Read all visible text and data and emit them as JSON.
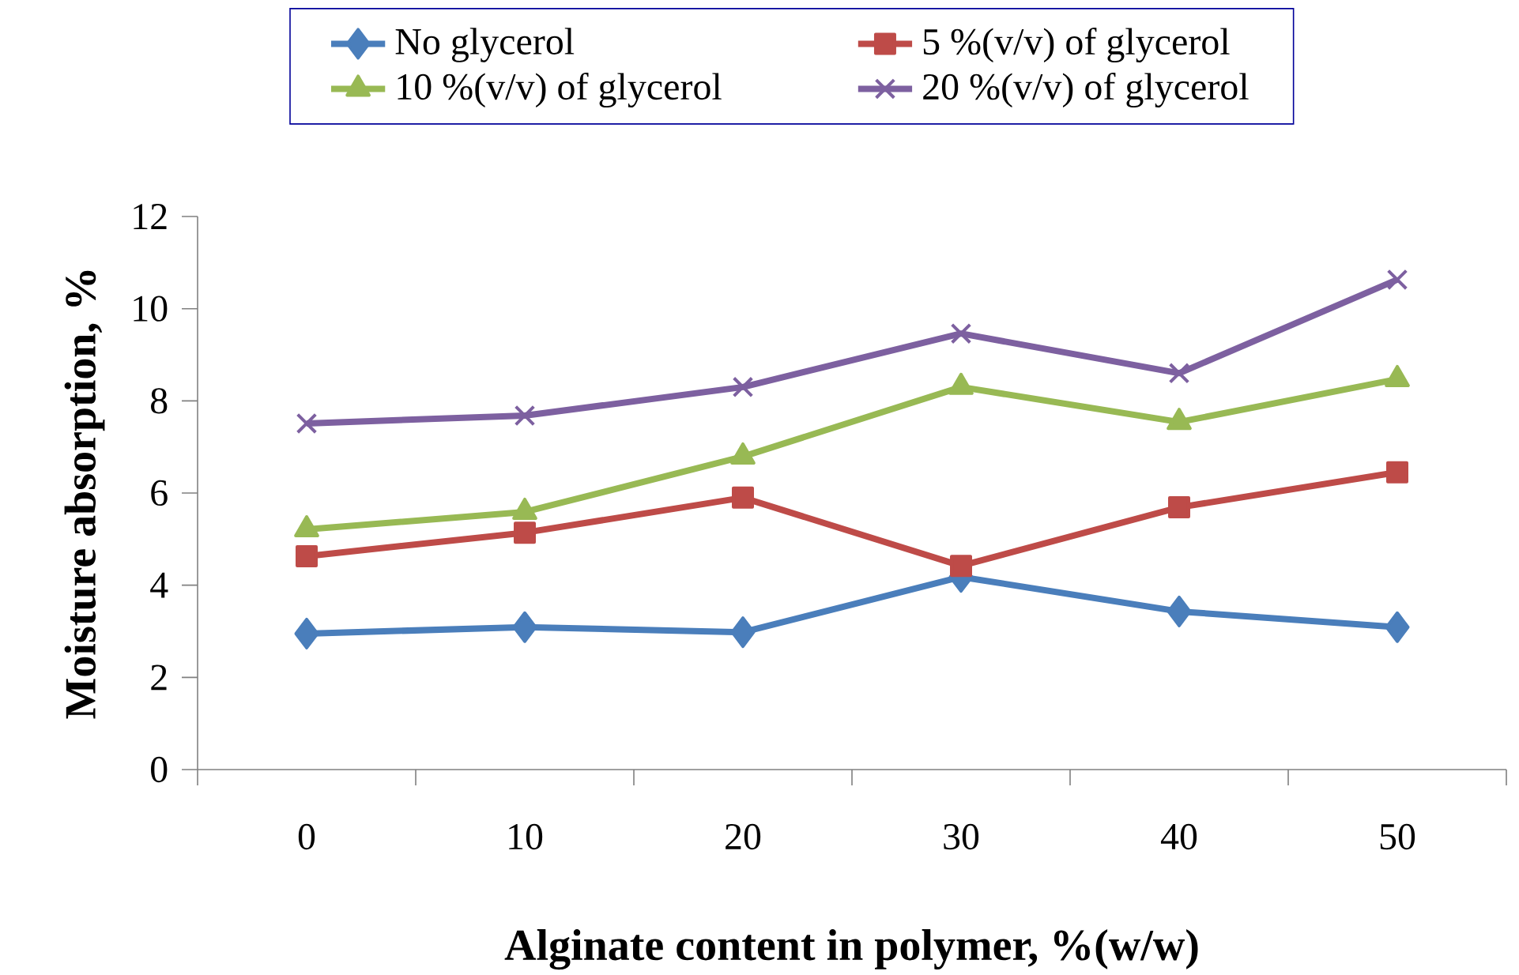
{
  "chart_data": {
    "type": "line",
    "xlabel": "Alginate content in polymer, %(w/w)",
    "ylabel": "Moisture absorption, %",
    "categories": [
      "0",
      "10",
      "20",
      "30",
      "40",
      "50"
    ],
    "series": [
      {
        "name": "No glycerol",
        "color": "#4a7ebb",
        "marker": "diamond",
        "values": [
          2.95,
          3.09,
          2.98,
          4.18,
          3.43,
          3.09
        ]
      },
      {
        "name": "5 %(v/v) of glycerol",
        "color": "#be4b48",
        "marker": "square",
        "values": [
          4.63,
          5.14,
          5.9,
          4.42,
          5.69,
          6.45
        ]
      },
      {
        "name": "10 %(v/v) of glycerol",
        "color": "#98b954",
        "marker": "triangle",
        "values": [
          5.21,
          5.59,
          6.79,
          8.3,
          7.54,
          8.47
        ]
      },
      {
        "name": "20 %(v/v) of glycerol",
        "color": "#7d60a0",
        "marker": "cross",
        "values": [
          7.51,
          7.68,
          8.3,
          9.46,
          8.6,
          10.63
        ]
      }
    ],
    "ylim": [
      0,
      12
    ],
    "yticks": [
      0,
      2,
      4,
      6,
      8,
      10,
      12
    ],
    "grid": false,
    "legend": "top"
  }
}
